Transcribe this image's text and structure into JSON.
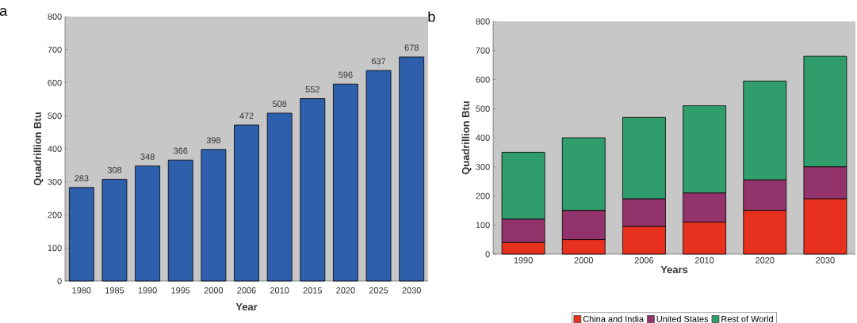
{
  "chart_data": [
    {
      "type": "bar",
      "title": "a",
      "xlabel": "Year",
      "ylabel": "Quadrillion Btu",
      "categories": [
        "1980",
        "1985",
        "1990",
        "1995",
        "2000",
        "2006",
        "2010",
        "2015",
        "2020",
        "2025",
        "2030"
      ],
      "values": [
        283,
        308,
        348,
        366,
        398,
        472,
        508,
        552,
        596,
        637,
        678
      ],
      "color": "#2e5fad",
      "ylim": [
        0,
        800
      ],
      "yticks": [
        0,
        100,
        200,
        300,
        400,
        500,
        600,
        700,
        800
      ],
      "data_labels": true,
      "grid": false
    },
    {
      "type": "bar",
      "title": "b",
      "xlabel": "Years",
      "ylabel": "Quadrillion Btu",
      "stacked": true,
      "categories": [
        "1990",
        "2000",
        "2006",
        "2010",
        "2020",
        "2030"
      ],
      "series": [
        {
          "name": "China and India",
          "color": "#e8301f",
          "values": [
            40,
            50,
            95,
            110,
            150,
            190
          ]
        },
        {
          "name": "United States",
          "color": "#93336b",
          "values": [
            80,
            100,
            95,
            100,
            105,
            110
          ]
        },
        {
          "name": "Rest of World",
          "color": "#2f9e6c",
          "values": [
            230,
            250,
            280,
            300,
            340,
            380
          ]
        }
      ],
      "ylim": [
        0,
        800
      ],
      "yticks": [
        0,
        100,
        200,
        300,
        400,
        500,
        600,
        700,
        800
      ],
      "grid": false,
      "legend": "bottom"
    }
  ]
}
